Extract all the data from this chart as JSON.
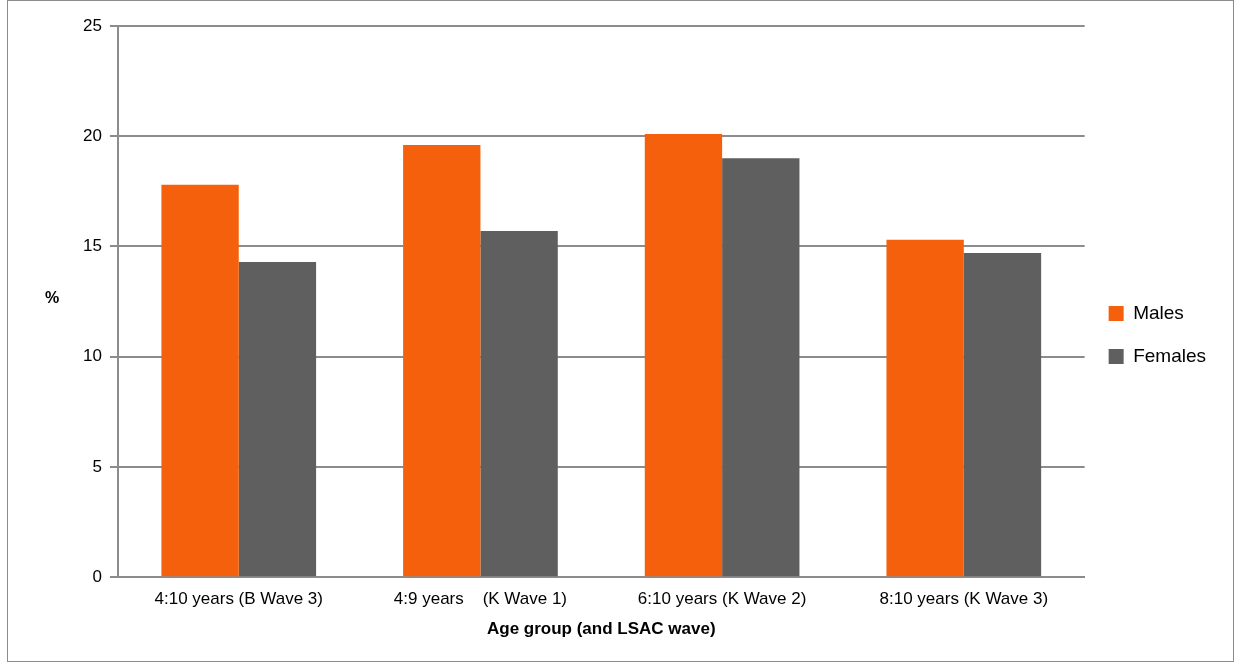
{
  "chart_data": {
    "type": "bar",
    "xlabel": "Age group (and LSAC wave)",
    "ylabel": "%",
    "categories": [
      "4:10 years (B Wave 3)",
      "4:9 years    (K Wave 1)",
      "6:10 years (K Wave 2)",
      "8:10 years (K Wave 3)"
    ],
    "series": [
      {
        "name": "Males",
        "color": "#f5600c",
        "values": [
          17.8,
          19.6,
          20.1,
          15.3
        ]
      },
      {
        "name": "Females",
        "color": "#5f5f5f",
        "values": [
          14.3,
          15.7,
          19.0,
          14.7
        ]
      }
    ],
    "ylim": [
      0,
      25
    ],
    "yticks": [
      0,
      5,
      10,
      15,
      20,
      25
    ],
    "grid": "y",
    "legend": "right"
  }
}
